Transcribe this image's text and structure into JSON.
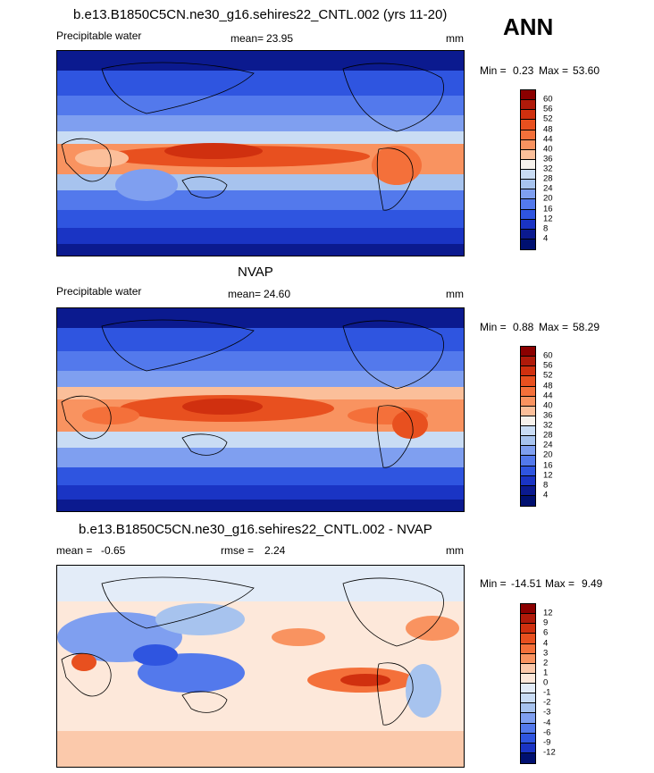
{
  "season": "ANN",
  "panels": [
    {
      "title": "b.e13.B1850C5CN.ne30_g16.sehires22_CNTL.002 (yrs 11-20)",
      "variable": "Precipitable water",
      "mean_label": "mean=",
      "mean_value": "23.95",
      "rmse_label": "",
      "rmse_value": "",
      "units": "mm",
      "min_label": "Min =",
      "min_value": "0.23",
      "max_label": "Max =",
      "max_value": "53.60",
      "levels": [
        "60",
        "56",
        "52",
        "48",
        "44",
        "40",
        "36",
        "32",
        "28",
        "24",
        "20",
        "16",
        "12",
        "8",
        "4"
      ]
    },
    {
      "title": "NVAP",
      "variable": "Precipitable water",
      "mean_label": "mean=",
      "mean_value": "24.60",
      "rmse_label": "",
      "rmse_value": "",
      "units": "mm",
      "min_label": "Min =",
      "min_value": "0.88",
      "max_label": "Max =",
      "max_value": "58.29",
      "levels": [
        "60",
        "56",
        "52",
        "48",
        "44",
        "40",
        "36",
        "32",
        "28",
        "24",
        "20",
        "16",
        "12",
        "8",
        "4"
      ]
    },
    {
      "title": "b.e13.B1850C5CN.ne30_g16.sehires22_CNTL.002 - NVAP",
      "variable": "",
      "mean_label": "mean =",
      "mean_value": "-0.65",
      "rmse_label": "rmse =",
      "rmse_value": "2.24",
      "units": "mm",
      "min_label": "Min =",
      "min_value": "-14.51",
      "max_label": "Max =",
      "max_value": "9.49",
      "levels": [
        "12",
        "9",
        "6",
        "4",
        "3",
        "2",
        "1",
        "0",
        "-1",
        "-2",
        "-3",
        "-4",
        "-6",
        "-9",
        "-12"
      ]
    }
  ],
  "colors": {
    "abs_palette": [
      "#8b0000",
      "#b01a0a",
      "#d0300f",
      "#e8501f",
      "#f4703a",
      "#f99360",
      "#fbbf9a",
      "#f7f2ec",
      "#c9dcf4",
      "#a7c3ee",
      "#7f9ff0",
      "#5379ec",
      "#2f55e0",
      "#1a34c4",
      "#0b1a8f",
      "#001070"
    ],
    "diff_palette": [
      "#8b0000",
      "#b01a0a",
      "#d0300f",
      "#e8501f",
      "#f4703a",
      "#f99360",
      "#fbc9ab",
      "#fde8da",
      "#e3ecf8",
      "#c9dcf4",
      "#a7c3ee",
      "#7f9ff0",
      "#5379ec",
      "#2f55e0",
      "#1a34c4",
      "#001070"
    ]
  }
}
